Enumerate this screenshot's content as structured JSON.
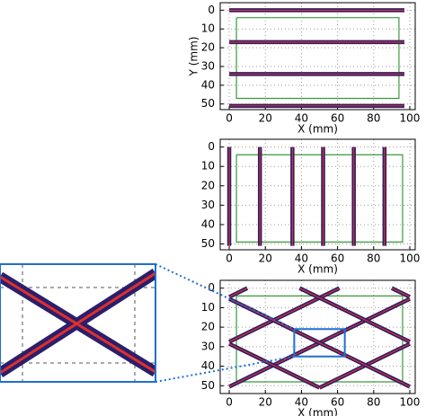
{
  "chart_data": [
    {
      "type": "line",
      "xlabel": "X (mm)",
      "ylabel": "Y (mm)",
      "xlim": [
        -5,
        103
      ],
      "ylim": [
        -4,
        53
      ],
      "y_inverted": true,
      "xticks": [
        0,
        20,
        40,
        60,
        80,
        100
      ],
      "yticks": [
        0,
        10,
        20,
        30,
        40,
        50
      ],
      "grid": true,
      "series": [
        {
          "color": "#3a9a3a",
          "x": [
            4,
            94,
            94,
            4,
            4
          ],
          "y": [
            4,
            4,
            47,
            47,
            4
          ]
        },
        {
          "color": "#2b1f6b",
          "x": [
            0,
            97
          ],
          "y": [
            0,
            0
          ]
        },
        {
          "color": "#2b1f6b",
          "x": [
            0,
            97
          ],
          "y": [
            17,
            17
          ]
        },
        {
          "color": "#2b1f6b",
          "x": [
            0,
            97
          ],
          "y": [
            34,
            34
          ]
        },
        {
          "color": "#2b1f6b",
          "x": [
            0,
            97
          ],
          "y": [
            51,
            51
          ]
        }
      ]
    },
    {
      "type": "line",
      "xlabel": "X (mm)",
      "xlim": [
        -5,
        103
      ],
      "ylim": [
        -4,
        53
      ],
      "y_inverted": true,
      "xticks": [
        0,
        20,
        40,
        60,
        80,
        100
      ],
      "yticks": [
        0,
        10,
        20,
        30,
        40,
        50
      ],
      "grid": true,
      "series": [
        {
          "color": "#3a9a3a",
          "x": [
            4,
            96,
            96,
            4,
            4
          ],
          "y": [
            4,
            4,
            49,
            49,
            4
          ]
        },
        {
          "color": "#2b1f6b",
          "x": [
            0,
            0
          ],
          "y": [
            0,
            51
          ]
        },
        {
          "color": "#2b1f6b",
          "x": [
            17,
            17
          ],
          "y": [
            0,
            51
          ]
        },
        {
          "color": "#2b1f6b",
          "x": [
            35,
            35
          ],
          "y": [
            0,
            51
          ]
        },
        {
          "color": "#2b1f6b",
          "x": [
            52,
            52
          ],
          "y": [
            0,
            51
          ]
        },
        {
          "color": "#2b1f6b",
          "x": [
            69,
            69
          ],
          "y": [
            0,
            51
          ]
        },
        {
          "color": "#2b1f6b",
          "x": [
            86,
            86
          ],
          "y": [
            0,
            51
          ]
        }
      ]
    },
    {
      "type": "line",
      "xlabel": "X (mm)",
      "xlim": [
        -5,
        103
      ],
      "ylim": [
        -4,
        54
      ],
      "y_inverted": true,
      "xticks": [
        0,
        20,
        40,
        60,
        80,
        100
      ],
      "yticks": [
        0,
        10,
        20,
        30,
        40,
        50
      ],
      "grid": true,
      "series": [
        {
          "color": "#3a9a3a",
          "x": [
            4,
            96,
            96,
            4,
            4
          ],
          "y": [
            4,
            4,
            48,
            48,
            4
          ]
        },
        {
          "color": "#2b1f6b",
          "x": [
            0,
            61
          ],
          "y": [
            27.5,
            0
          ]
        },
        {
          "color": "#2b1f6b",
          "x": [
            0,
            100
          ],
          "y": [
            50.5,
            5.5
          ]
        },
        {
          "color": "#2b1f6b",
          "x": [
            50,
            100
          ],
          "y": [
            51,
            28.5
          ]
        },
        {
          "color": "#2b1f6b",
          "x": [
            0,
            10
          ],
          "y": [
            4.5,
            0
          ]
        },
        {
          "color": "#2b1f6b",
          "x": [
            0,
            100
          ],
          "y": [
            5.5,
            50.5
          ]
        },
        {
          "color": "#2b1f6b",
          "x": [
            39,
            100
          ],
          "y": [
            0,
            27.5
          ]
        },
        {
          "color": "#2b1f6b",
          "x": [
            0,
            50
          ],
          "y": [
            28.5,
            51
          ]
        },
        {
          "color": "#2b1f6b",
          "x": [
            90,
            100
          ],
          "y": [
            0,
            4.5
          ]
        },
        {
          "color": "#1f6fd1",
          "x": [
            36,
            64,
            64,
            36,
            36
          ],
          "y": [
            21,
            21,
            35,
            35,
            21
          ]
        }
      ]
    }
  ]
}
